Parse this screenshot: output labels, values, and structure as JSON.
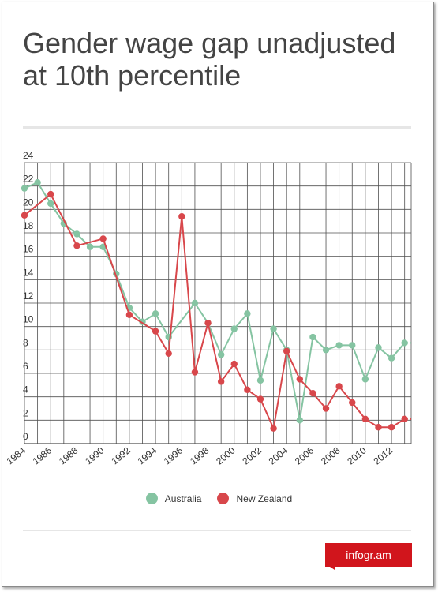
{
  "title": "Gender wage gap unadjusted at 10th percentile",
  "brand": "infogr.am",
  "colors": {
    "australia": "#85c4a2",
    "new_zealand": "#d8474b",
    "grid": "#505050",
    "axis_text": "#333333"
  },
  "chart_data": {
    "type": "line",
    "title": "Gender wage gap unadjusted at 10th percentile",
    "xlabel": "",
    "ylabel": "",
    "x": [
      1984,
      1985,
      1986,
      1987,
      1988,
      1989,
      1990,
      1991,
      1992,
      1993,
      1994,
      1995,
      1996,
      1997,
      1998,
      1999,
      2000,
      2001,
      2002,
      2003,
      2004,
      2005,
      2006,
      2007,
      2008,
      2009,
      2010,
      2011,
      2012,
      2013
    ],
    "xlim": [
      1984,
      2013.5
    ],
    "ylim": [
      0,
      24
    ],
    "y_ticks": [
      0,
      2,
      4,
      6,
      8,
      10,
      12,
      14,
      16,
      18,
      20,
      22,
      24
    ],
    "x_tick_labels": [
      "1984",
      "1986",
      "1988",
      "1990",
      "1992",
      "1994",
      "1996",
      "1998",
      "2000",
      "2002",
      "2004",
      "2006",
      "2008",
      "2010",
      "2012"
    ],
    "grid": true,
    "legend_position": "bottom",
    "series": [
      {
        "name": "Australia",
        "color": "#85c4a2",
        "values": [
          21.8,
          22.3,
          20.5,
          18.8,
          17.9,
          16.8,
          16.8,
          14.5,
          11.6,
          10.4,
          11.1,
          9.1,
          null,
          12.0,
          10.3,
          7.6,
          9.8,
          11.1,
          5.4,
          9.8,
          8.0,
          2.0,
          9.1,
          8.0,
          8.4,
          8.4,
          5.5,
          8.2,
          7.3,
          8.6
        ]
      },
      {
        "name": "New Zealand",
        "color": "#d8474b",
        "values": [
          19.5,
          null,
          21.3,
          null,
          16.9,
          null,
          17.5,
          null,
          11.0,
          null,
          9.6,
          7.7,
          19.4,
          6.1,
          10.3,
          5.3,
          6.8,
          4.6,
          3.8,
          1.3,
          7.9,
          5.5,
          4.3,
          3.0,
          4.9,
          3.5,
          2.1,
          1.4,
          1.4,
          2.1
        ]
      }
    ]
  }
}
